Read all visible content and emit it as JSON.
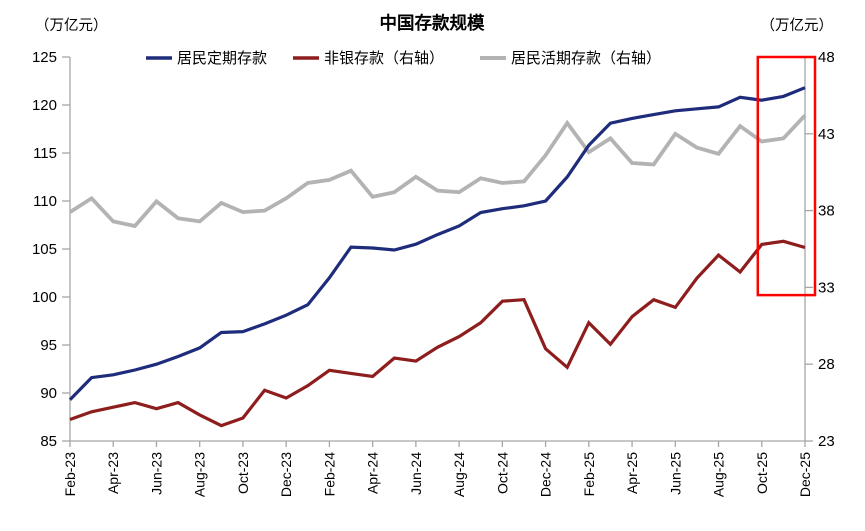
{
  "chart": {
    "title": "中国存款规模",
    "left_unit": "（万亿元）",
    "right_unit": "（万亿元）"
  },
  "chart_data": {
    "type": "line",
    "title": "中国存款规模",
    "legend_position": "top",
    "grid": false,
    "text_color": "#000000",
    "axis_color": "#a6a6a6",
    "x": [
      "Feb-23",
      "Mar-23",
      "Apr-23",
      "May-23",
      "Jun-23",
      "Jul-23",
      "Aug-23",
      "Sep-23",
      "Oct-23",
      "Nov-23",
      "Dec-23",
      "Jan-24",
      "Feb-24",
      "Mar-24",
      "Apr-24",
      "May-24",
      "Jun-24",
      "Jul-24",
      "Aug-24",
      "Sep-24",
      "Oct-24",
      "Nov-24",
      "Dec-24",
      "Jan-25",
      "Feb-25",
      "Mar-25",
      "Apr-25",
      "May-25",
      "Jun-25",
      "Jul-25",
      "Aug-25",
      "Sep-25",
      "Oct-25",
      "Nov-25",
      "Dec-25"
    ],
    "x_tick_every": 2,
    "left_axis": {
      "label": "（万亿元）",
      "min": 85,
      "max": 125,
      "step": 5,
      "ticks": [
        85,
        90,
        95,
        100,
        105,
        110,
        115,
        120,
        125
      ]
    },
    "right_axis": {
      "label": "（万亿元）",
      "min": 23,
      "max": 48,
      "step": 5,
      "ticks": [
        23,
        28,
        33,
        38,
        43,
        48
      ]
    },
    "series": [
      {
        "key": "time-deposits",
        "name": "居民定期存款",
        "axis": "left",
        "color": "#1f2c7b",
        "width": 3.2,
        "values": [
          89.3,
          91.6,
          91.9,
          92.4,
          93.0,
          93.8,
          94.7,
          96.3,
          96.4,
          97.2,
          98.1,
          99.2,
          102.0,
          105.2,
          105.1,
          104.9,
          105.5,
          106.5,
          107.4,
          108.8,
          109.2,
          109.5,
          110.0,
          112.5,
          115.8,
          118.1,
          118.6,
          119.0,
          119.4,
          119.6,
          119.8,
          120.8,
          120.5,
          120.9,
          121.8
        ]
      },
      {
        "key": "nonbank-deposits",
        "name": "非银存款（右轴）",
        "axis": "right",
        "color": "#8e1d1d",
        "width": 3.2,
        "values": [
          24.4,
          24.9,
          25.2,
          25.5,
          25.1,
          25.5,
          24.7,
          24.0,
          24.5,
          26.3,
          25.8,
          26.6,
          27.6,
          27.4,
          27.2,
          28.4,
          28.2,
          29.1,
          29.8,
          30.7,
          32.1,
          32.2,
          29.0,
          27.8,
          30.7,
          29.3,
          31.1,
          32.2,
          31.7,
          33.6,
          35.1,
          34.0,
          35.8,
          36.0,
          35.6
        ]
      },
      {
        "key": "demand-deposits",
        "name": "居民活期存款（右轴）",
        "axis": "right",
        "color": "#b3b3b3",
        "width": 3.8,
        "values": [
          37.9,
          38.8,
          37.3,
          37.0,
          38.6,
          37.5,
          37.3,
          38.5,
          37.9,
          38.0,
          38.8,
          39.8,
          40.0,
          40.6,
          38.9,
          39.2,
          40.2,
          39.3,
          39.2,
          40.1,
          39.8,
          39.9,
          41.6,
          43.7,
          41.8,
          42.7,
          41.1,
          41.0,
          43.0,
          42.1,
          41.7,
          43.5,
          42.5,
          42.7,
          44.2
        ]
      }
    ],
    "highlight_box": {
      "from_month": "Oct-25",
      "to_month": "Dec-25",
      "bottom_right_axis_value": 32.5,
      "color": "#fe0000"
    }
  }
}
